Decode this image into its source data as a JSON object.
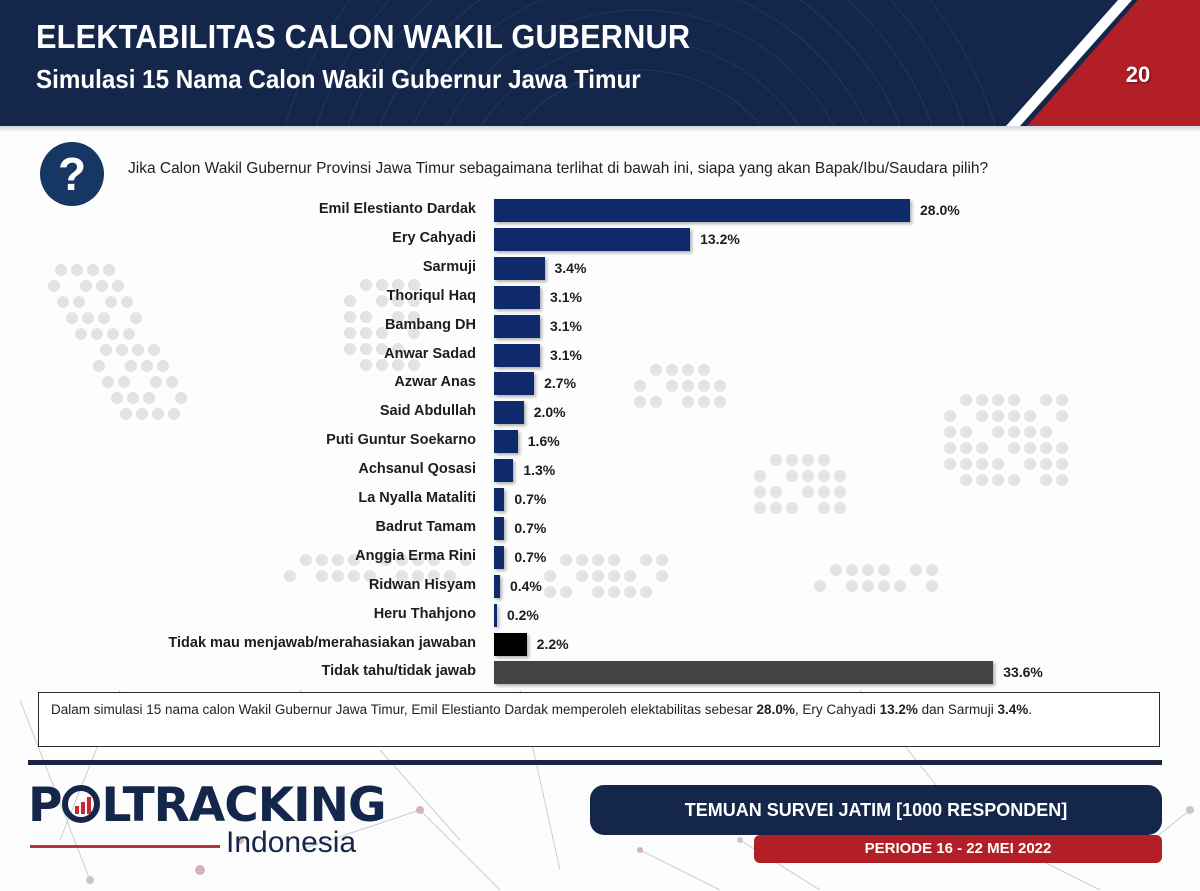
{
  "header": {
    "title": "ELEKTABILITAS CALON WAKIL GUBERNUR",
    "subtitle": "Simulasi 15 Nama Calon Wakil Gubernur Jawa Timur",
    "page_number": "20"
  },
  "question": {
    "icon": "question-mark-icon",
    "text": "Jika Calon Wakil Gubernur Provinsi Jawa Timur sebagaimana terlihat di bawah ini, siapa yang akan Bapak/Ibu/Saudara pilih?"
  },
  "colors": {
    "navy": "#14264a",
    "bar_blue": "#0f2a6b",
    "bar_black": "#000000",
    "bar_gray": "#444444",
    "red": "#b31f26"
  },
  "chart_data": {
    "type": "bar",
    "orientation": "horizontal",
    "title": "Elektabilitas Calon Wakil Gubernur - Simulasi 15 Nama",
    "xlabel": "",
    "ylabel": "",
    "unit": "%",
    "grid": false,
    "legend": "none",
    "categories": [
      "Emil Elestianto Dardak",
      "Ery Cahyadi",
      "Sarmuji",
      "Thoriqul Haq",
      "Bambang DH",
      "Anwar Sadad",
      "Azwar Anas",
      "Said Abdullah",
      "Puti Guntur Soekarno",
      "Achsanul Qosasi",
      "La Nyalla Mataliti",
      "Badrut Tamam",
      "Anggia Erma Rini",
      "Ridwan Hisyam",
      "Heru Thahjono",
      "Tidak mau menjawab/merahasiakan jawaban",
      "Tidak tahu/tidak jawab"
    ],
    "values": [
      28.0,
      13.2,
      3.4,
      3.1,
      3.1,
      3.1,
      2.7,
      2.0,
      1.6,
      1.3,
      0.7,
      0.7,
      0.7,
      0.4,
      0.2,
      2.2,
      33.6
    ],
    "labels": [
      "28.0%",
      "13.2%",
      "3.4%",
      "3.1%",
      "3.1%",
      "3.1%",
      "2.7%",
      "2.0%",
      "1.6%",
      "1.3%",
      "0.7%",
      "0.7%",
      "0.7%",
      "0.4%",
      "0.2%",
      "2.2%",
      "33.6%"
    ],
    "bar_colors": [
      "#0f2a6b",
      "#0f2a6b",
      "#0f2a6b",
      "#0f2a6b",
      "#0f2a6b",
      "#0f2a6b",
      "#0f2a6b",
      "#0f2a6b",
      "#0f2a6b",
      "#0f2a6b",
      "#0f2a6b",
      "#0f2a6b",
      "#0f2a6b",
      "#0f2a6b",
      "#0f2a6b",
      "#000000",
      "#444444"
    ],
    "xlim": [
      0,
      35
    ]
  },
  "summary": {
    "parts": [
      {
        "text": "Dalam simulasi 15 nama calon Wakil Gubernur Jawa Timur, Emil Elestianto Dardak memperoleh elektabilitas sebesar ",
        "bold": false
      },
      {
        "text": "28.0%",
        "bold": true
      },
      {
        "text": ", Ery Cahyadi ",
        "bold": false
      },
      {
        "text": "13.2%",
        "bold": true
      },
      {
        "text": " dan Sarmuji ",
        "bold": false
      },
      {
        "text": "3.4%",
        "bold": true
      },
      {
        "text": ".",
        "bold": false
      }
    ]
  },
  "footer": {
    "logo_word": "P",
    "logo_word_rest": "LTRACKING",
    "logo_sub": "Indonesia",
    "survey_label": "TEMUAN SURVEI JATIM [1000 RESPONDEN]",
    "period_label": "PERIODE 16 - 22 MEI 2022"
  }
}
